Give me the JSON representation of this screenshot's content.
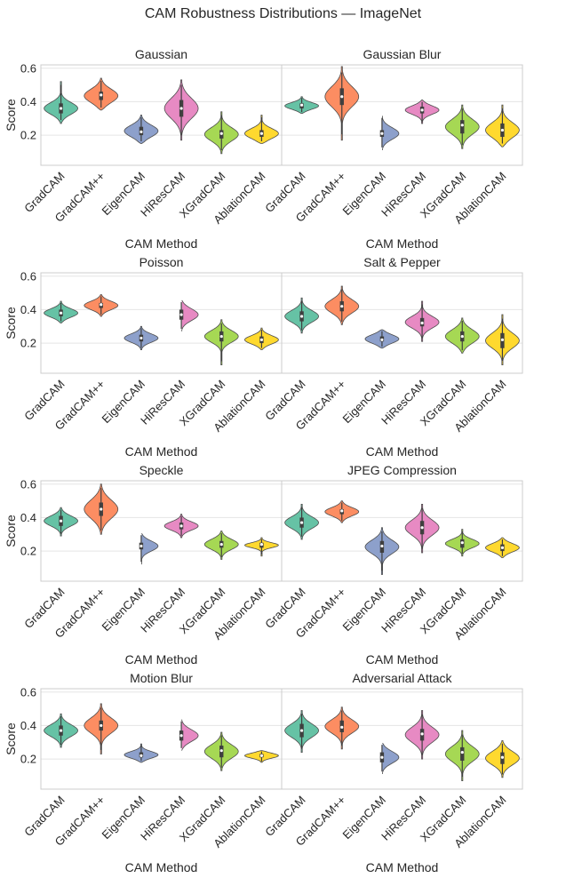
{
  "figure_title": "CAM Robustness Distributions — ImageNet",
  "colors": {
    "palette": [
      "#66c2a5",
      "#fc8d62",
      "#8da0cb",
      "#e78ac3",
      "#a6d854",
      "#ffd92f"
    ],
    "grid": "#e5e5e5",
    "frame": "#cccccc",
    "violin_edge": "#4d4d4d",
    "box": "#3f3f3f"
  },
  "chart_data": [
    {
      "type": "violin",
      "title": "Gaussian",
      "xlabel": "CAM Method",
      "ylabel": "Score",
      "categories": [
        "GradCAM",
        "GradCAM++",
        "EigenCAM",
        "HiResCAM",
        "XGradCAM",
        "AblationCAM"
      ],
      "ylim": [
        0.02,
        0.62
      ],
      "yticks": [
        0.2,
        0.4,
        0.6
      ],
      "grid": "horizontal",
      "series": [
        {
          "name": "GradCAM",
          "min": 0.27,
          "max": 0.52,
          "median": 0.36,
          "q1": 0.33,
          "q3": 0.39,
          "spread": 0.035
        },
        {
          "name": "GradCAM++",
          "min": 0.35,
          "max": 0.54,
          "median": 0.44,
          "q1": 0.41,
          "q3": 0.46,
          "spread": 0.04
        },
        {
          "name": "EigenCAM",
          "min": 0.15,
          "max": 0.32,
          "median": 0.22,
          "q1": 0.2,
          "q3": 0.25,
          "spread": 0.035
        },
        {
          "name": "HiResCAM",
          "min": 0.17,
          "max": 0.53,
          "median": 0.36,
          "q1": 0.31,
          "q3": 0.41,
          "spread": 0.06
        },
        {
          "name": "XGradCAM",
          "min": 0.09,
          "max": 0.34,
          "median": 0.21,
          "q1": 0.18,
          "q3": 0.23,
          "spread": 0.04
        },
        {
          "name": "AblationCAM",
          "min": 0.15,
          "max": 0.32,
          "median": 0.21,
          "q1": 0.19,
          "q3": 0.23,
          "spread": 0.03
        }
      ]
    },
    {
      "type": "violin",
      "title": "Gaussian Blur",
      "xlabel": "CAM Method",
      "ylabel": "",
      "categories": [
        "GradCAM",
        "GradCAM++",
        "EigenCAM",
        "HiResCAM",
        "XGradCAM",
        "AblationCAM"
      ],
      "ylim": [
        0.02,
        0.62
      ],
      "yticks": [
        0.2,
        0.4,
        0.6
      ],
      "grid": "horizontal",
      "series": [
        {
          "name": "GradCAM",
          "min": 0.33,
          "max": 0.43,
          "median": 0.38,
          "q1": 0.36,
          "q3": 0.39,
          "spread": 0.02
        },
        {
          "name": "GradCAM++",
          "min": 0.17,
          "max": 0.61,
          "median": 0.43,
          "q1": 0.38,
          "q3": 0.48,
          "spread": 0.06
        },
        {
          "name": "EigenCAM",
          "min": 0.11,
          "max": 0.32,
          "median": 0.21,
          "q1": 0.19,
          "q3": 0.23,
          "spread": 0.035
        },
        {
          "name": "HiResCAM",
          "min": 0.27,
          "max": 0.41,
          "median": 0.35,
          "q1": 0.33,
          "q3": 0.37,
          "spread": 0.025
        },
        {
          "name": "XGradCAM",
          "min": 0.12,
          "max": 0.38,
          "median": 0.26,
          "q1": 0.21,
          "q3": 0.29,
          "spread": 0.045
        },
        {
          "name": "AblationCAM",
          "min": 0.13,
          "max": 0.38,
          "median": 0.23,
          "q1": 0.19,
          "q3": 0.27,
          "spread": 0.045
        }
      ]
    },
    {
      "type": "violin",
      "title": "Poisson",
      "xlabel": "CAM Method",
      "ylabel": "Score",
      "categories": [
        "GradCAM",
        "GradCAM++",
        "EigenCAM",
        "HiResCAM",
        "XGradCAM",
        "AblationCAM"
      ],
      "ylim": [
        0.02,
        0.62
      ],
      "yticks": [
        0.2,
        0.4,
        0.6
      ],
      "grid": "horizontal",
      "series": [
        {
          "name": "GradCAM",
          "min": 0.32,
          "max": 0.45,
          "median": 0.38,
          "q1": 0.36,
          "q3": 0.4,
          "spread": 0.025
        },
        {
          "name": "GradCAM++",
          "min": 0.36,
          "max": 0.49,
          "median": 0.43,
          "q1": 0.41,
          "q3": 0.44,
          "spread": 0.025
        },
        {
          "name": "EigenCAM",
          "min": 0.16,
          "max": 0.3,
          "median": 0.23,
          "q1": 0.21,
          "q3": 0.25,
          "spread": 0.025
        },
        {
          "name": "HiResCAM",
          "min": 0.27,
          "max": 0.46,
          "median": 0.37,
          "q1": 0.34,
          "q3": 0.4,
          "spread": 0.035
        },
        {
          "name": "XGradCAM",
          "min": 0.07,
          "max": 0.34,
          "median": 0.24,
          "q1": 0.21,
          "q3": 0.27,
          "spread": 0.035
        },
        {
          "name": "AblationCAM",
          "min": 0.16,
          "max": 0.29,
          "median": 0.22,
          "q1": 0.2,
          "q3": 0.24,
          "spread": 0.025
        }
      ]
    },
    {
      "type": "violin",
      "title": "Salt & Pepper",
      "xlabel": "CAM Method",
      "ylabel": "",
      "categories": [
        "GradCAM",
        "GradCAM++",
        "EigenCAM",
        "HiResCAM",
        "XGradCAM",
        "AblationCAM"
      ],
      "ylim": [
        0.02,
        0.62
      ],
      "yticks": [
        0.2,
        0.4,
        0.6
      ],
      "grid": "horizontal",
      "series": [
        {
          "name": "GradCAM",
          "min": 0.26,
          "max": 0.47,
          "median": 0.36,
          "q1": 0.33,
          "q3": 0.39,
          "spread": 0.035
        },
        {
          "name": "GradCAM++",
          "min": 0.31,
          "max": 0.54,
          "median": 0.42,
          "q1": 0.39,
          "q3": 0.45,
          "spread": 0.04
        },
        {
          "name": "EigenCAM",
          "min": 0.17,
          "max": 0.28,
          "median": 0.22,
          "q1": 0.21,
          "q3": 0.24,
          "spread": 0.025
        },
        {
          "name": "HiResCAM",
          "min": 0.21,
          "max": 0.45,
          "median": 0.32,
          "q1": 0.3,
          "q3": 0.35,
          "spread": 0.035
        },
        {
          "name": "XGradCAM",
          "min": 0.14,
          "max": 0.35,
          "median": 0.24,
          "q1": 0.21,
          "q3": 0.27,
          "spread": 0.04
        },
        {
          "name": "AblationCAM",
          "min": 0.07,
          "max": 0.37,
          "median": 0.22,
          "q1": 0.17,
          "q3": 0.26,
          "spread": 0.045
        }
      ]
    },
    {
      "type": "violin",
      "title": "Speckle",
      "xlabel": "CAM Method",
      "ylabel": "Score",
      "categories": [
        "GradCAM",
        "GradCAM++",
        "EigenCAM",
        "HiResCAM",
        "XGradCAM",
        "AblationCAM"
      ],
      "ylim": [
        0.02,
        0.62
      ],
      "yticks": [
        0.2,
        0.4,
        0.6
      ],
      "grid": "horizontal",
      "series": [
        {
          "name": "GradCAM",
          "min": 0.29,
          "max": 0.46,
          "median": 0.38,
          "q1": 0.35,
          "q3": 0.41,
          "spread": 0.03
        },
        {
          "name": "GradCAM++",
          "min": 0.3,
          "max": 0.6,
          "median": 0.45,
          "q1": 0.41,
          "q3": 0.49,
          "spread": 0.055
        },
        {
          "name": "EigenCAM",
          "min": 0.12,
          "max": 0.31,
          "median": 0.23,
          "q1": 0.21,
          "q3": 0.25,
          "spread": 0.03
        },
        {
          "name": "HiResCAM",
          "min": 0.28,
          "max": 0.42,
          "median": 0.35,
          "q1": 0.33,
          "q3": 0.37,
          "spread": 0.025
        },
        {
          "name": "XGradCAM",
          "min": 0.15,
          "max": 0.32,
          "median": 0.24,
          "q1": 0.22,
          "q3": 0.26,
          "spread": 0.03
        },
        {
          "name": "AblationCAM",
          "min": 0.17,
          "max": 0.28,
          "median": 0.24,
          "q1": 0.22,
          "q3": 0.25,
          "spread": 0.015
        }
      ]
    },
    {
      "type": "violin",
      "title": "JPEG Compression",
      "xlabel": "CAM Method",
      "ylabel": "",
      "categories": [
        "GradCAM",
        "GradCAM++",
        "EigenCAM",
        "HiResCAM",
        "XGradCAM",
        "AblationCAM"
      ],
      "ylim": [
        0.02,
        0.62
      ],
      "yticks": [
        0.2,
        0.4,
        0.6
      ],
      "grid": "horizontal",
      "series": [
        {
          "name": "GradCAM",
          "min": 0.27,
          "max": 0.48,
          "median": 0.37,
          "q1": 0.34,
          "q3": 0.4,
          "spread": 0.035
        },
        {
          "name": "GradCAM++",
          "min": 0.37,
          "max": 0.5,
          "median": 0.44,
          "q1": 0.42,
          "q3": 0.45,
          "spread": 0.025
        },
        {
          "name": "EigenCAM",
          "min": 0.06,
          "max": 0.34,
          "median": 0.23,
          "q1": 0.19,
          "q3": 0.26,
          "spread": 0.04
        },
        {
          "name": "HiResCAM",
          "min": 0.19,
          "max": 0.48,
          "median": 0.34,
          "q1": 0.3,
          "q3": 0.38,
          "spread": 0.045
        },
        {
          "name": "XGradCAM",
          "min": 0.17,
          "max": 0.33,
          "median": 0.25,
          "q1": 0.22,
          "q3": 0.27,
          "spread": 0.025
        },
        {
          "name": "AblationCAM",
          "min": 0.16,
          "max": 0.28,
          "median": 0.22,
          "q1": 0.2,
          "q3": 0.24,
          "spread": 0.025
        }
      ]
    },
    {
      "type": "violin",
      "title": "Motion Blur",
      "xlabel": "CAM Method",
      "ylabel": "Score",
      "categories": [
        "GradCAM",
        "GradCAM++",
        "EigenCAM",
        "HiResCAM",
        "XGradCAM",
        "AblationCAM"
      ],
      "ylim": [
        0.02,
        0.62
      ],
      "yticks": [
        0.2,
        0.4,
        0.6
      ],
      "grid": "horizontal",
      "series": [
        {
          "name": "GradCAM",
          "min": 0.27,
          "max": 0.47,
          "median": 0.37,
          "q1": 0.34,
          "q3": 0.4,
          "spread": 0.035
        },
        {
          "name": "GradCAM++",
          "min": 0.23,
          "max": 0.53,
          "median": 0.4,
          "q1": 0.37,
          "q3": 0.43,
          "spread": 0.045
        },
        {
          "name": "EigenCAM",
          "min": 0.18,
          "max": 0.29,
          "median": 0.22,
          "q1": 0.21,
          "q3": 0.24,
          "spread": 0.02
        },
        {
          "name": "HiResCAM",
          "min": 0.25,
          "max": 0.44,
          "median": 0.34,
          "q1": 0.31,
          "q3": 0.37,
          "spread": 0.035
        },
        {
          "name": "XGradCAM",
          "min": 0.13,
          "max": 0.36,
          "median": 0.25,
          "q1": 0.21,
          "q3": 0.28,
          "spread": 0.04
        },
        {
          "name": "AblationCAM",
          "min": 0.18,
          "max": 0.25,
          "median": 0.22,
          "q1": 0.21,
          "q3": 0.23,
          "spread": 0.015
        }
      ]
    },
    {
      "type": "violin",
      "title": "Adversarial Attack",
      "xlabel": "CAM Method",
      "ylabel": "",
      "categories": [
        "GradCAM",
        "GradCAM++",
        "EigenCAM",
        "HiResCAM",
        "XGradCAM",
        "AblationCAM"
      ],
      "ylim": [
        0.02,
        0.62
      ],
      "yticks": [
        0.2,
        0.4,
        0.6
      ],
      "grid": "horizontal",
      "series": [
        {
          "name": "GradCAM",
          "min": 0.24,
          "max": 0.49,
          "median": 0.37,
          "q1": 0.33,
          "q3": 0.41,
          "spread": 0.04
        },
        {
          "name": "GradCAM++",
          "min": 0.26,
          "max": 0.51,
          "median": 0.39,
          "q1": 0.36,
          "q3": 0.43,
          "spread": 0.04
        },
        {
          "name": "EigenCAM",
          "min": 0.11,
          "max": 0.3,
          "median": 0.21,
          "q1": 0.18,
          "q3": 0.24,
          "spread": 0.035
        },
        {
          "name": "HiResCAM",
          "min": 0.2,
          "max": 0.49,
          "median": 0.35,
          "q1": 0.31,
          "q3": 0.38,
          "spread": 0.045
        },
        {
          "name": "XGradCAM",
          "min": 0.07,
          "max": 0.37,
          "median": 0.24,
          "q1": 0.19,
          "q3": 0.27,
          "spread": 0.045
        },
        {
          "name": "AblationCAM",
          "min": 0.09,
          "max": 0.31,
          "median": 0.21,
          "q1": 0.17,
          "q3": 0.24,
          "spread": 0.04
        }
      ]
    }
  ]
}
